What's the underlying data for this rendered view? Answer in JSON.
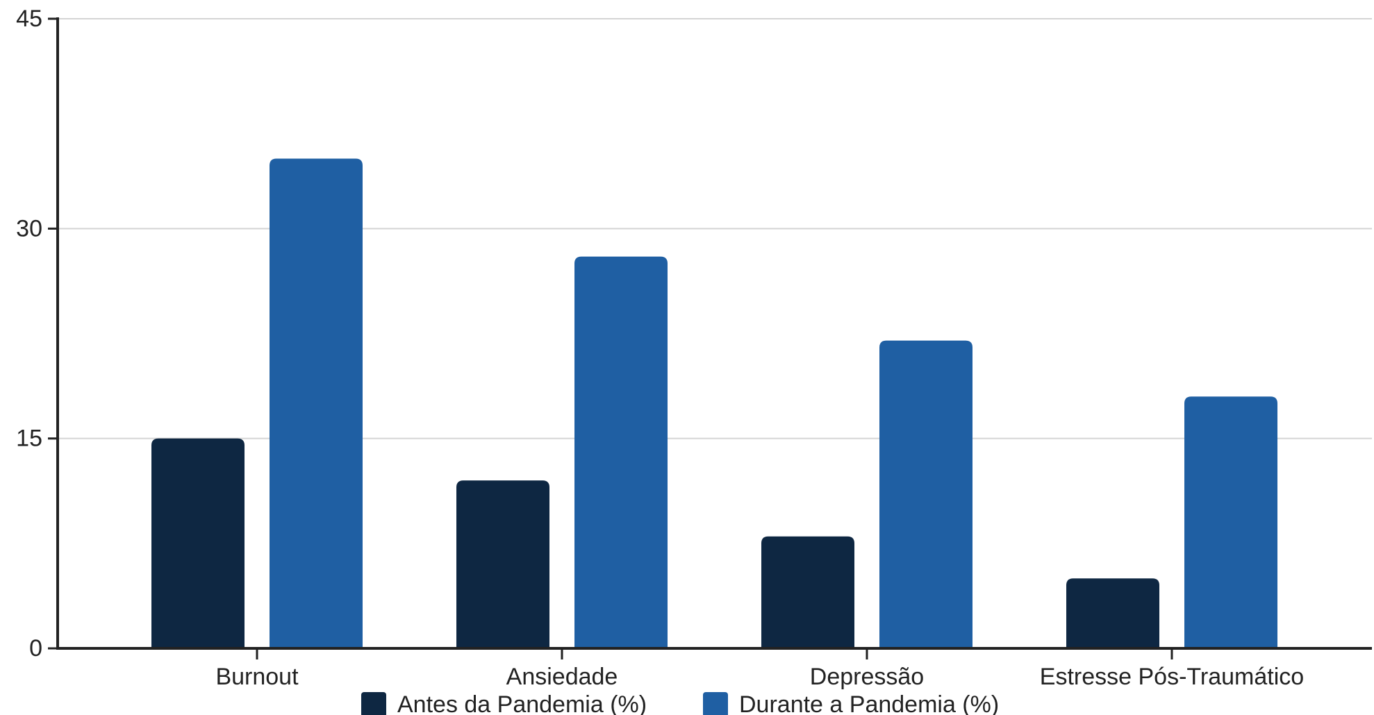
{
  "chart_data": {
    "type": "bar",
    "title": "",
    "xlabel": "",
    "ylabel": "",
    "categories": [
      "Burnout",
      "Ansiedade",
      "Depressão",
      "Estresse Pós-Traumático"
    ],
    "series": [
      {
        "name": "Antes da Pandemia (%)",
        "values": [
          15,
          12,
          8,
          5
        ],
        "color": "#0e2742"
      },
      {
        "name": "Durante a Pandemia (%)",
        "values": [
          35,
          28,
          22,
          18
        ],
        "color": "#1f5fa3"
      }
    ],
    "ylim": [
      0,
      45
    ],
    "yticks": [
      0,
      15,
      30,
      45
    ],
    "grid": true,
    "legend_position": "bottom-center",
    "axis_color": "#222222",
    "grid_color": "#d4d4d4"
  }
}
